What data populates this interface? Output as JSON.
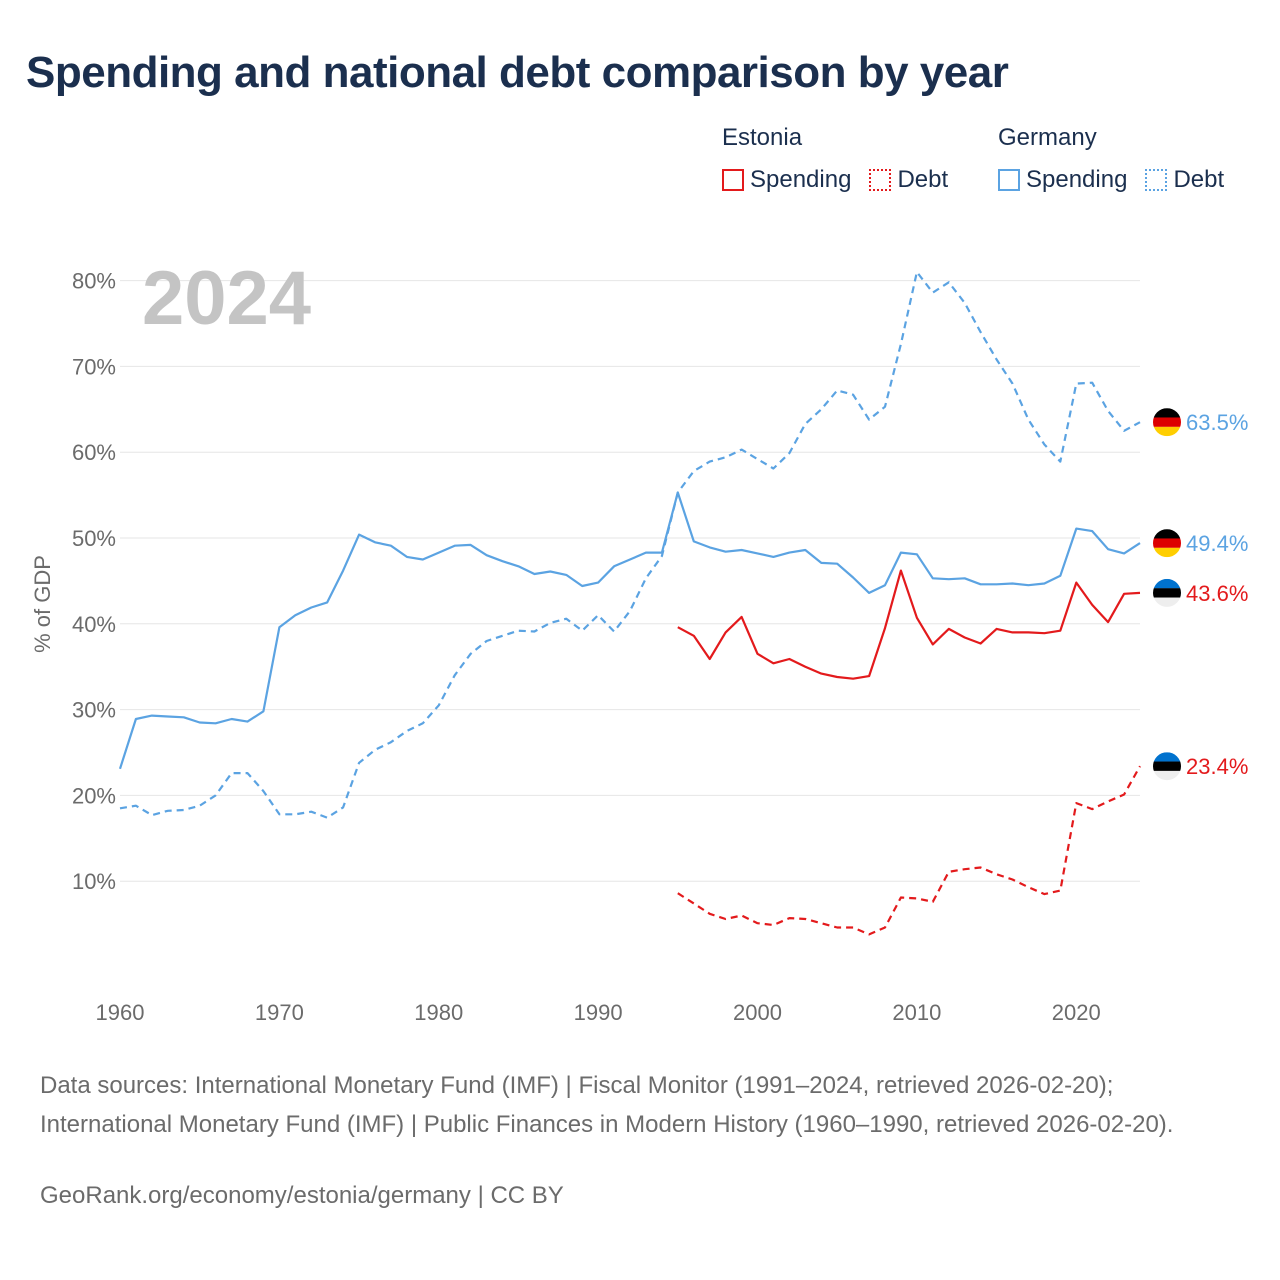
{
  "header": {
    "title": "Spending and national debt comparison by year"
  },
  "legend": {
    "groups": [
      {
        "country": "Estonia",
        "color": "#e31a1c",
        "items": [
          "Spending",
          "Debt"
        ]
      },
      {
        "country": "Germany",
        "color": "#5ba3e2",
        "items": [
          "Spending",
          "Debt"
        ]
      }
    ]
  },
  "footer": {
    "sources": "Data sources: International Monetary Fund (IMF) | Fiscal Monitor (1991–2024, retrieved 2026-02-20); International Monetary Fund (IMF) | Public Finances in Modern History (1960–1990, retrieved 2026-02-20).",
    "credit": "GeoRank.org/economy/estonia/germany | CC BY"
  },
  "chart_data": {
    "type": "line",
    "title": "Spending and national debt comparison by year",
    "current_year_label": "2024",
    "ylabel": "% of GDP",
    "xlabel": "",
    "xlim": [
      1960,
      2024
    ],
    "ylim": [
      0,
      82
    ],
    "yticks": [
      10,
      20,
      30,
      40,
      50,
      60,
      70,
      80
    ],
    "ytick_labels": [
      "10%",
      "20%",
      "30%",
      "40%",
      "50%",
      "60%",
      "70%",
      "80%"
    ],
    "xticks": [
      1960,
      1970,
      1980,
      1990,
      2000,
      2010,
      2020
    ],
    "xtick_labels": [
      "1960",
      "1970",
      "1980",
      "1990",
      "2000",
      "2010",
      "2020"
    ],
    "series": [
      {
        "name": "Germany Debt",
        "country": "Germany",
        "measure": "Debt",
        "color": "#5ba3e2",
        "dashed": true,
        "end_label": "63.5%",
        "flag": "germany",
        "x": [
          1960,
          1961,
          1962,
          1963,
          1964,
          1965,
          1966,
          1967,
          1968,
          1969,
          1970,
          1971,
          1972,
          1973,
          1974,
          1975,
          1976,
          1977,
          1978,
          1979,
          1980,
          1981,
          1982,
          1983,
          1984,
          1985,
          1986,
          1987,
          1988,
          1989,
          1990,
          1991,
          1992,
          1993,
          1994,
          1995,
          1996,
          1997,
          1998,
          1999,
          2000,
          2001,
          2002,
          2003,
          2004,
          2005,
          2006,
          2007,
          2008,
          2009,
          2010,
          2011,
          2012,
          2013,
          2014,
          2015,
          2016,
          2017,
          2018,
          2019,
          2020,
          2021,
          2022,
          2023,
          2024
        ],
        "values": [
          18.5,
          18.8,
          17.7,
          18.2,
          18.3,
          18.8,
          20.0,
          22.6,
          22.6,
          20.5,
          17.8,
          17.8,
          18.1,
          17.4,
          18.6,
          23.8,
          25.3,
          26.2,
          27.5,
          28.4,
          30.5,
          34.0,
          36.5,
          38.0,
          38.6,
          39.2,
          39.1,
          40.1,
          40.6,
          39.2,
          41.0,
          39.1,
          41.5,
          45.3,
          47.9,
          55.3,
          57.8,
          58.9,
          59.4,
          60.3,
          59.2,
          58.1,
          59.9,
          63.3,
          65.0,
          67.2,
          66.7,
          63.8,
          65.3,
          72.6,
          81.0,
          78.6,
          79.8,
          77.4,
          74.0,
          70.8,
          68.0,
          63.8,
          60.9,
          58.9,
          68.0,
          68.1,
          64.8,
          62.5,
          63.5
        ]
      },
      {
        "name": "Germany Spending",
        "country": "Germany",
        "measure": "Spending",
        "color": "#5ba3e2",
        "dashed": false,
        "end_label": "49.4%",
        "flag": "germany",
        "x": [
          1960,
          1961,
          1962,
          1963,
          1964,
          1965,
          1966,
          1967,
          1968,
          1969,
          1970,
          1971,
          1972,
          1973,
          1974,
          1975,
          1976,
          1977,
          1978,
          1979,
          1980,
          1981,
          1982,
          1983,
          1984,
          1985,
          1986,
          1987,
          1988,
          1989,
          1990,
          1991,
          1992,
          1993,
          1994,
          1995,
          1996,
          1997,
          1998,
          1999,
          2000,
          2001,
          2002,
          2003,
          2004,
          2005,
          2006,
          2007,
          2008,
          2009,
          2010,
          2011,
          2012,
          2013,
          2014,
          2015,
          2016,
          2017,
          2018,
          2019,
          2020,
          2021,
          2022,
          2023,
          2024
        ],
        "values": [
          23.1,
          28.9,
          29.3,
          29.2,
          29.1,
          28.5,
          28.4,
          28.9,
          28.6,
          29.8,
          39.6,
          41.0,
          41.9,
          42.5,
          46.2,
          50.4,
          49.5,
          49.1,
          47.8,
          47.5,
          48.3,
          49.1,
          49.2,
          48.0,
          47.3,
          46.7,
          45.8,
          46.1,
          45.7,
          44.4,
          44.8,
          46.7,
          47.5,
          48.3,
          48.3,
          55.3,
          49.6,
          48.9,
          48.4,
          48.6,
          48.2,
          47.8,
          48.3,
          48.6,
          47.1,
          47.0,
          45.4,
          43.6,
          44.5,
          48.3,
          48.1,
          45.3,
          45.2,
          45.3,
          44.6,
          44.6,
          44.7,
          44.5,
          44.7,
          45.6,
          51.1,
          50.8,
          48.7,
          48.2,
          49.4
        ]
      },
      {
        "name": "Estonia Spending",
        "country": "Estonia",
        "measure": "Spending",
        "color": "#e31a1c",
        "dashed": false,
        "end_label": "43.6%",
        "flag": "estonia",
        "x": [
          1995,
          1996,
          1997,
          1998,
          1999,
          2000,
          2001,
          2002,
          2003,
          2004,
          2005,
          2006,
          2007,
          2008,
          2009,
          2010,
          2011,
          2012,
          2013,
          2014,
          2015,
          2016,
          2017,
          2018,
          2019,
          2020,
          2021,
          2022,
          2023,
          2024
        ],
        "values": [
          39.6,
          38.6,
          35.9,
          39.0,
          40.8,
          36.5,
          35.4,
          35.9,
          35.0,
          34.2,
          33.8,
          33.6,
          33.9,
          39.5,
          46.2,
          40.7,
          37.6,
          39.4,
          38.4,
          37.7,
          39.4,
          39.0,
          39.0,
          38.9,
          39.2,
          44.8,
          42.2,
          40.2,
          43.5,
          43.6
        ]
      },
      {
        "name": "Estonia Debt",
        "country": "Estonia",
        "measure": "Debt",
        "color": "#e31a1c",
        "dashed": true,
        "end_label": "23.4%",
        "flag": "estonia",
        "x": [
          1995,
          1996,
          1997,
          1998,
          1999,
          2000,
          2001,
          2002,
          2003,
          2004,
          2005,
          2006,
          2007,
          2008,
          2009,
          2010,
          2011,
          2012,
          2013,
          2014,
          2015,
          2016,
          2017,
          2018,
          2019,
          2020,
          2021,
          2022,
          2023,
          2024
        ],
        "values": [
          8.6,
          7.4,
          6.2,
          5.6,
          6.0,
          5.1,
          4.9,
          5.7,
          5.6,
          5.1,
          4.6,
          4.6,
          3.8,
          4.6,
          8.1,
          8.0,
          7.6,
          11.1,
          11.4,
          11.6,
          10.8,
          10.2,
          9.3,
          8.5,
          8.9,
          19.1,
          18.4,
          19.3,
          20.1,
          23.4
        ]
      }
    ]
  }
}
